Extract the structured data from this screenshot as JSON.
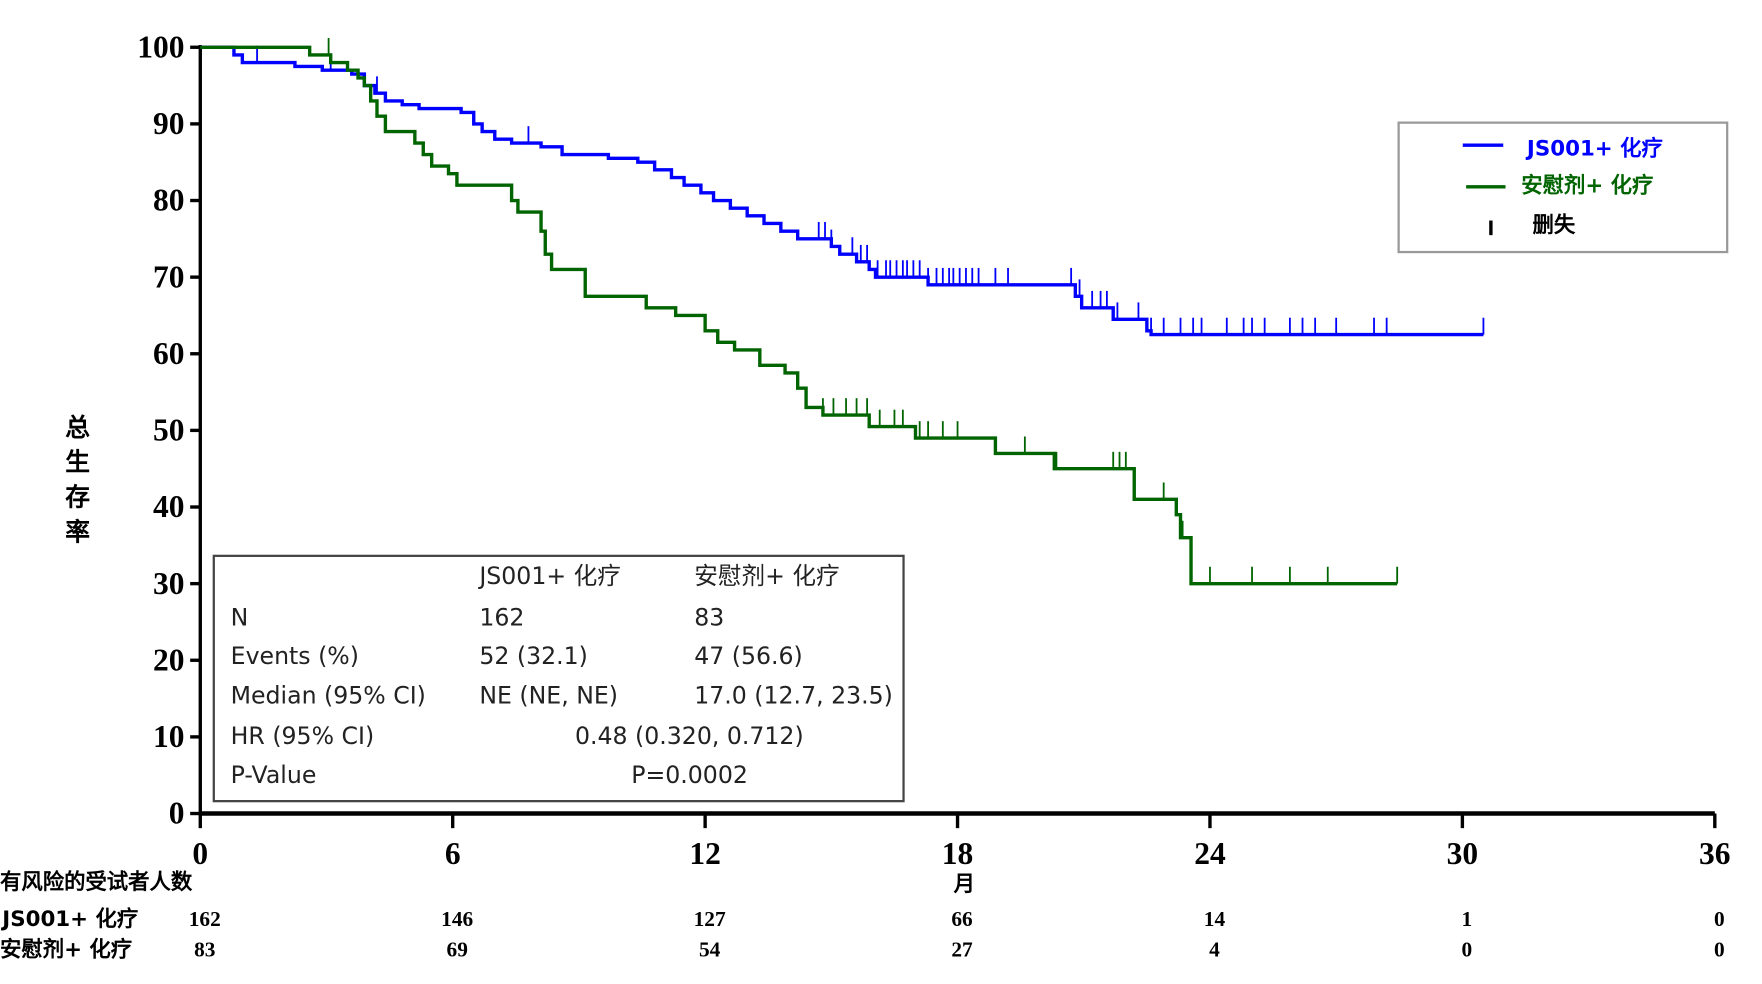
{
  "chart_data": {
    "type": "line",
    "subtype": "kaplan-meier",
    "xlabel": "月",
    "ylabel": "总生存率",
    "xlim": [
      0,
      36
    ],
    "ylim": [
      0,
      100
    ],
    "xticks": [
      "0",
      "6",
      "12",
      "18",
      "24",
      "30",
      "36"
    ],
    "yticks": [
      "0",
      "10",
      "20",
      "30",
      "40",
      "50",
      "60",
      "70",
      "80",
      "90",
      "100"
    ],
    "legend": {
      "placement": "top-right",
      "entries": [
        {
          "label": "JS001+ 化疗",
          "color": "#0000ff"
        },
        {
          "label": "安慰剂+ 化疗",
          "color": "#006400"
        },
        {
          "label": "删失",
          "color": "#000000"
        }
      ]
    },
    "series": [
      {
        "name": "JS001+ 化疗",
        "color": "#0000ff",
        "steps": [
          [
            0,
            100
          ],
          [
            0.8,
            99
          ],
          [
            1.0,
            98
          ],
          [
            2.25,
            97.5
          ],
          [
            2.9,
            97
          ],
          [
            3.6,
            96.5
          ],
          [
            3.9,
            95
          ],
          [
            4.15,
            94
          ],
          [
            4.4,
            93
          ],
          [
            4.8,
            92.5
          ],
          [
            5.2,
            92
          ],
          [
            6.2,
            91.5
          ],
          [
            6.5,
            90
          ],
          [
            6.7,
            89
          ],
          [
            7.0,
            88
          ],
          [
            7.4,
            87.5
          ],
          [
            8.1,
            87
          ],
          [
            8.6,
            86
          ],
          [
            9.7,
            85.5
          ],
          [
            10.4,
            85
          ],
          [
            10.8,
            84
          ],
          [
            11.2,
            83
          ],
          [
            11.5,
            82
          ],
          [
            11.9,
            81
          ],
          [
            12.2,
            80
          ],
          [
            12.6,
            79
          ],
          [
            13.0,
            78
          ],
          [
            13.4,
            77
          ],
          [
            13.8,
            76
          ],
          [
            14.2,
            75
          ],
          [
            15.0,
            74
          ],
          [
            15.2,
            73
          ],
          [
            15.6,
            72
          ],
          [
            15.9,
            71
          ],
          [
            16.05,
            70
          ],
          [
            17.3,
            69
          ],
          [
            20.8,
            67.5
          ],
          [
            20.95,
            66
          ],
          [
            21.7,
            64.5
          ],
          [
            22.5,
            63
          ],
          [
            22.6,
            62.5
          ],
          [
            30.5,
            62.5
          ]
        ],
        "censored": [
          1.35,
          3.1,
          4.2,
          7.8,
          14.7,
          14.85,
          15.0,
          15.5,
          15.7,
          15.85,
          16.1,
          16.3,
          16.4,
          16.55,
          16.7,
          16.8,
          16.95,
          17.1,
          17.3,
          17.5,
          17.65,
          17.8,
          17.9,
          18.05,
          18.2,
          18.35,
          18.5,
          18.9,
          19.2,
          20.7,
          20.9,
          21.2,
          21.4,
          21.55,
          21.8,
          22.3,
          22.6,
          22.9,
          23.3,
          23.6,
          23.8,
          24.4,
          24.8,
          25.0,
          25.3,
          25.9,
          26.2,
          26.5,
          27.0,
          27.9,
          28.2,
          30.5
        ]
      },
      {
        "name": "安慰剂+ 化疗",
        "color": "#006400",
        "steps": [
          [
            0,
            100
          ],
          [
            2.6,
            99
          ],
          [
            3.1,
            98
          ],
          [
            3.5,
            97
          ],
          [
            3.75,
            96
          ],
          [
            3.9,
            95
          ],
          [
            4.05,
            93
          ],
          [
            4.2,
            91
          ],
          [
            4.4,
            89
          ],
          [
            5.1,
            87.5
          ],
          [
            5.3,
            86
          ],
          [
            5.5,
            84.5
          ],
          [
            5.9,
            83.5
          ],
          [
            6.1,
            82
          ],
          [
            7.4,
            80
          ],
          [
            7.55,
            78.5
          ],
          [
            8.1,
            76
          ],
          [
            8.2,
            73
          ],
          [
            8.35,
            71
          ],
          [
            9.15,
            67.5
          ],
          [
            10.6,
            66
          ],
          [
            11.3,
            65
          ],
          [
            12.0,
            63
          ],
          [
            12.3,
            61.5
          ],
          [
            12.7,
            60.5
          ],
          [
            13.3,
            58.5
          ],
          [
            13.9,
            57.5
          ],
          [
            14.2,
            55.5
          ],
          [
            14.4,
            53
          ],
          [
            14.8,
            52
          ],
          [
            15.9,
            50.5
          ],
          [
            17.0,
            49
          ],
          [
            18.9,
            47
          ],
          [
            20.3,
            45
          ],
          [
            22.2,
            41
          ],
          [
            23.2,
            39
          ],
          [
            23.3,
            36
          ],
          [
            23.55,
            30
          ],
          [
            28.45,
            30
          ]
        ],
        "censored": [
          3.05,
          14.8,
          15.05,
          15.35,
          15.6,
          15.85,
          16.15,
          16.5,
          16.7,
          17.1,
          17.3,
          17.65,
          18.0,
          18.9,
          19.6,
          20.35,
          21.7,
          21.85,
          22.0,
          22.9,
          23.35,
          24.0,
          25.0,
          25.9,
          26.8,
          28.45
        ]
      }
    ],
    "stats_table": {
      "headers": [
        "",
        "JS001+ 化疗",
        "安慰剂+ 化疗"
      ],
      "rows": [
        [
          "N",
          "162",
          "83"
        ],
        [
          "Events (%)",
          "52 (32.1)",
          "47 (56.6)"
        ],
        [
          "Median (95% CI)",
          "NE (NE, NE)",
          "17.0 (12.7, 23.5)"
        ]
      ],
      "hr_label": "HR (95% CI)",
      "hr_value": "0.48 (0.320, 0.712)",
      "p_label": "P-Value",
      "p_value": "P=0.0002"
    },
    "risk_table": {
      "title": "有风险的受试者人数",
      "rows": [
        {
          "label": "JS001+ 化疗",
          "values": [
            "162",
            "146",
            "127",
            "66",
            "14",
            "1",
            "0"
          ]
        },
        {
          "label": "安慰剂+ 化疗",
          "values": [
            "83",
            "69",
            "54",
            "27",
            "4",
            "0",
            "0"
          ]
        }
      ]
    }
  }
}
